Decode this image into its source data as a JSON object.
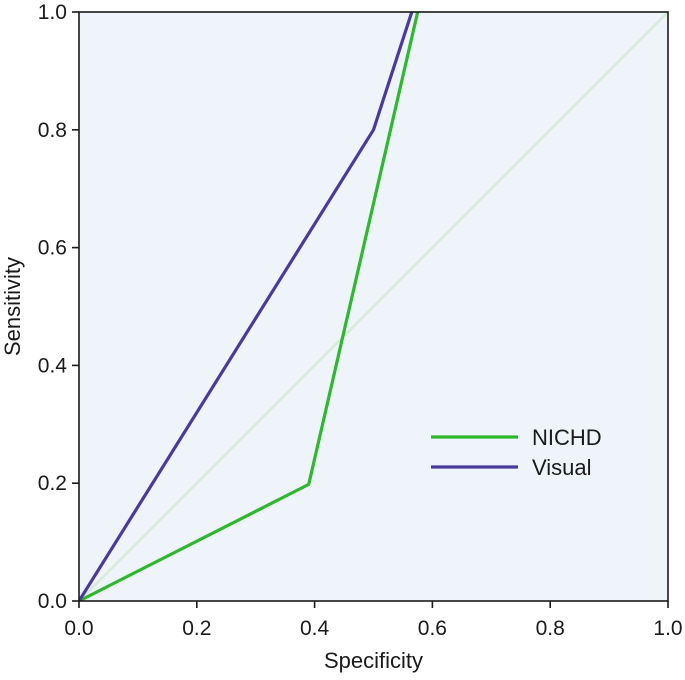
{
  "chart_data": {
    "type": "line",
    "title": "",
    "xlabel": "Specificity",
    "ylabel": "Sensitivity",
    "xlim": [
      0.0,
      1.0
    ],
    "ylim": [
      0.0,
      1.0
    ],
    "x_ticks": [
      "0.0",
      "0.2",
      "0.4",
      "0.6",
      "0.8",
      "1.0"
    ],
    "y_ticks": [
      "0.0",
      "0.2",
      "0.4",
      "0.6",
      "0.8",
      "1.0"
    ],
    "grid": false,
    "legend_position": "lower-right",
    "background_color": "#eef4fa",
    "reference_line": {
      "x": [
        0.0,
        1.0
      ],
      "y": [
        0.0,
        1.0
      ],
      "color": "#d5ecd8"
    },
    "series": [
      {
        "name": "NICHD",
        "color": "#2db82d",
        "x": [
          0.0,
          0.39,
          0.575
        ],
        "y": [
          0.0,
          0.198,
          1.0
        ]
      },
      {
        "name": "Visual",
        "color": "#4a3aa0",
        "x": [
          0.0,
          0.5,
          0.565
        ],
        "y": [
          0.0,
          0.8,
          1.0
        ]
      }
    ]
  }
}
